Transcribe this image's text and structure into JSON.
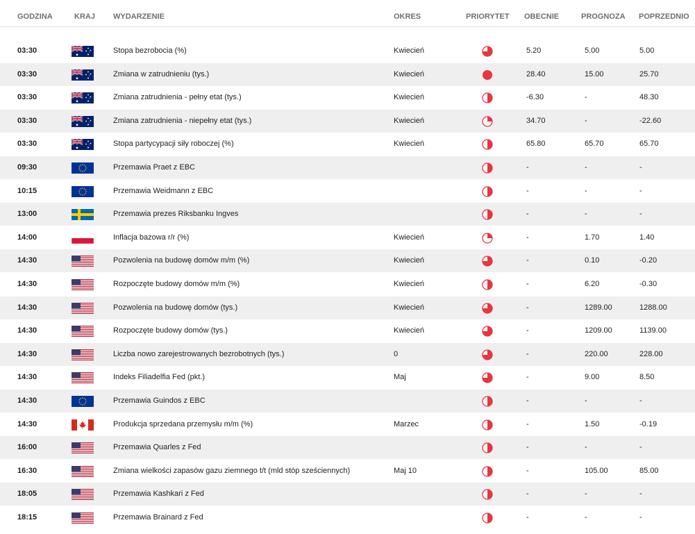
{
  "header": {
    "time": "GODZINA",
    "country": "KRAJ",
    "event": "WYDARZENIE",
    "period": "OKRES",
    "priority": "PRIORYTET",
    "actual": "OBECNIE",
    "forecast": "PROGNOZA",
    "previous": "POPRZEDNIO"
  },
  "colors": {
    "priority": "#e8363f",
    "row_alt": "#efefef"
  },
  "rows": [
    {
      "time": "03:30",
      "country": "australia",
      "event": "Stopa bezrobocia (%)",
      "period": "Kwiecień",
      "priority": "medium",
      "actual": "5.20",
      "forecast": "5.00",
      "previous": "5.00"
    },
    {
      "time": "03:30",
      "country": "australia",
      "event": "Zmiana w zatrudnieniu (tys.)",
      "period": "Kwiecień",
      "priority": "high",
      "actual": "28.40",
      "forecast": "15.00",
      "previous": "25.70"
    },
    {
      "time": "03:30",
      "country": "australia",
      "event": "Zmiana zatrudnienia - pełny etat (tys.)",
      "period": "Kwiecień",
      "priority": "half",
      "actual": "-6.30",
      "forecast": "-",
      "previous": "48.30"
    },
    {
      "time": "03:30",
      "country": "australia",
      "event": "Zmiana zatrudnienia - niepełny etat (tys.)",
      "period": "Kwiecień",
      "priority": "low",
      "actual": "34.70",
      "forecast": "-",
      "previous": "-22.60"
    },
    {
      "time": "03:30",
      "country": "australia",
      "event": "Stopa partycypacji siły roboczej (%)",
      "period": "Kwiecień",
      "priority": "half",
      "actual": "65.80",
      "forecast": "65.70",
      "previous": "65.70"
    },
    {
      "time": "09:30",
      "country": "eu",
      "event": "Przemawia Praet z EBC",
      "period": "",
      "priority": "half",
      "actual": "-",
      "forecast": "-",
      "previous": "-"
    },
    {
      "time": "10:15",
      "country": "eu",
      "event": "Przemawia Weidmann z EBC",
      "period": "",
      "priority": "half",
      "actual": "-",
      "forecast": "-",
      "previous": "-"
    },
    {
      "time": "13:00",
      "country": "sweden",
      "event": "Przemawia prezes Riksbanku Ingves",
      "period": "",
      "priority": "half",
      "actual": "-",
      "forecast": "-",
      "previous": "-"
    },
    {
      "time": "14:00",
      "country": "poland",
      "event": "Inflacja bazowa r/r (%)",
      "period": "Kwiecień",
      "priority": "low",
      "actual": "-",
      "forecast": "1.70",
      "previous": "1.40"
    },
    {
      "time": "14:30",
      "country": "usa",
      "event": "Pozwolenia na budowę domów m/m (%)",
      "period": "Kwiecień",
      "priority": "medium",
      "actual": "-",
      "forecast": "0.10",
      "previous": "-0.20"
    },
    {
      "time": "14:30",
      "country": "usa",
      "event": "Rozpoczęte budowy domów m/m (%)",
      "period": "Kwiecień",
      "priority": "half",
      "actual": "-",
      "forecast": "6.20",
      "previous": "-0.30"
    },
    {
      "time": "14:30",
      "country": "usa",
      "event": "Pozwolenia na budowę domów (tys.)",
      "period": "Kwiecień",
      "priority": "medium",
      "actual": "-",
      "forecast": "1289.00",
      "previous": "1288.00"
    },
    {
      "time": "14:30",
      "country": "usa",
      "event": "Rozpoczęte budowy domów (tys.)",
      "period": "Kwiecień",
      "priority": "medium",
      "actual": "-",
      "forecast": "1209.00",
      "previous": "1139.00"
    },
    {
      "time": "14:30",
      "country": "usa",
      "event": "Liczba nowo zarejestrowanych bezrobotnych (tys.)",
      "period": "0",
      "priority": "medium",
      "actual": "-",
      "forecast": "220.00",
      "previous": "228.00"
    },
    {
      "time": "14:30",
      "country": "usa",
      "event": "Indeks Filiadelfia Fed (pkt.)",
      "period": "Maj",
      "priority": "medium",
      "actual": "-",
      "forecast": "9.00",
      "previous": "8.50"
    },
    {
      "time": "14:30",
      "country": "eu",
      "event": "Przemawia Guindos z EBC",
      "period": "",
      "priority": "half",
      "actual": "-",
      "forecast": "-",
      "previous": "-"
    },
    {
      "time": "14:30",
      "country": "canada",
      "event": "Produkcja sprzedana przemysłu m/m (%)",
      "period": "Marzec",
      "priority": "half",
      "actual": "-",
      "forecast": "1.50",
      "previous": "-0.19"
    },
    {
      "time": "16:00",
      "country": "usa",
      "event": "Przemawia Quarles z Fed",
      "period": "",
      "priority": "half",
      "actual": "-",
      "forecast": "-",
      "previous": "-"
    },
    {
      "time": "16:30",
      "country": "usa",
      "event": "Zmiana wielkości zapasów gazu ziemnego t/t (mld stóp sześciennych)",
      "period": "Maj 10",
      "priority": "half",
      "actual": "-",
      "forecast": "105.00",
      "previous": "85.00"
    },
    {
      "time": "18:05",
      "country": "usa",
      "event": "Przemawia Kashkari z Fed",
      "period": "",
      "priority": "half",
      "actual": "-",
      "forecast": "-",
      "previous": "-"
    },
    {
      "time": "18:15",
      "country": "usa",
      "event": "Przemawia Brainard z Fed",
      "period": "",
      "priority": "half",
      "actual": "-",
      "forecast": "-",
      "previous": "-"
    }
  ]
}
